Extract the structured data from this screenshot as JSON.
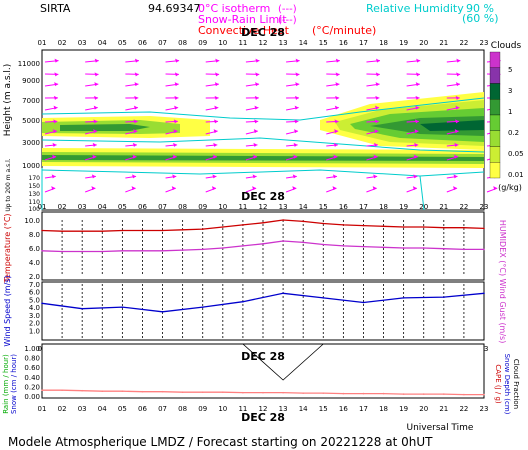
{
  "header": {
    "station": "SIRTA",
    "coords": "94.69347",
    "legend_isotherm": "0°C isotherm",
    "legend_isotherm_sym": "(---)",
    "legend_snow_rain": "Snow-Rain Limit",
    "legend_snow_rain_sym": "(---)",
    "legend_convective": "Convective Heat",
    "legend_convective_sym": "(°C/minute)",
    "legend_rh": "Relative Humidity",
    "legend_rh_90": "90 %",
    "legend_rh_60": "(60 %)"
  },
  "footer": {
    "title": "Modele Atmospherique LMDZ / Forecast starting on 20221228 at 0hUT",
    "universal_time": "Universal Time",
    "day_label": "DEC 28"
  },
  "colors": {
    "temperature": "#cc0000",
    "humidex": "#cc33cc",
    "wind": "#0000cc",
    "rain": "#ff8080",
    "rh": "#00cccc",
    "wind_arrow": "#ff00ff"
  },
  "chart_data": [
    {
      "type": "heatmap",
      "name": "cloud-cross-section",
      "day_label": "DEC 28",
      "x_hours": [
        "01",
        "02",
        "03",
        "04",
        "05",
        "06",
        "07",
        "08",
        "09",
        "10",
        "11",
        "12",
        "13",
        "14",
        "15",
        "16",
        "17",
        "18",
        "19",
        "20",
        "21",
        "22",
        "23"
      ],
      "ylabel": "Height (m a.s.l.)",
      "ylabel_low": "Up to 200 m a.s.l.",
      "y_ticks_upper": [
        "11000",
        "9000",
        "7000",
        "5000",
        "3000",
        "1000"
      ],
      "y_ticks_lower": [
        "170",
        "150",
        "130",
        "110",
        "100"
      ],
      "colorbar_title": "Clouds",
      "colorbar_unit": "(g/kg)",
      "colorbar_ticks": [
        "5",
        "3",
        "1",
        "0.2",
        "0.05",
        "0.01"
      ],
      "colorbar_colors": [
        "#cc33cc",
        "#8833aa",
        "#006633",
        "#339933",
        "#66cc33",
        "#99dd33",
        "#ccee33",
        "#ffff44"
      ]
    },
    {
      "type": "line",
      "name": "temperature-humidex",
      "ylabel": "Temperature (°C)",
      "ylabel_right": "HUMIDEX (°C)",
      "y_ticks": [
        "10.0",
        "8.0",
        "6.0",
        "4.0",
        "2.0"
      ],
      "ylim": [
        2,
        10
      ],
      "x": [
        1,
        2,
        3,
        4,
        5,
        6,
        7,
        8,
        9,
        10,
        11,
        12,
        13,
        14,
        15,
        16,
        17,
        18,
        19,
        20,
        21,
        22,
        23
      ],
      "series": [
        {
          "name": "Temperature",
          "values": [
            8.5,
            8.4,
            8.4,
            8.4,
            8.5,
            8.5,
            8.5,
            8.6,
            8.7,
            9.0,
            9.3,
            9.6,
            10.0,
            9.8,
            9.5,
            9.3,
            9.2,
            9.1,
            9.0,
            9.0,
            8.9,
            8.9,
            8.8
          ]
        },
        {
          "name": "HUMIDEX",
          "values": [
            5.6,
            5.5,
            5.5,
            5.5,
            5.6,
            5.6,
            5.6,
            5.7,
            5.8,
            6.0,
            6.3,
            6.6,
            7.0,
            6.8,
            6.5,
            6.3,
            6.2,
            6.1,
            6.0,
            6.0,
            5.9,
            5.8,
            5.8
          ]
        }
      ]
    },
    {
      "type": "line",
      "name": "wind-speed",
      "ylabel": "Wind Speed (m/s)",
      "ylabel_right": "Wind Gust (m/s)",
      "y_ticks": [
        "7.0",
        "6.0",
        "5.0",
        "4.0",
        "3.0",
        "2.0",
        "1.0"
      ],
      "ylim": [
        0,
        7
      ],
      "x": [
        1,
        3,
        5,
        7,
        9,
        11,
        13,
        15,
        17,
        19,
        21,
        23
      ],
      "series": [
        {
          "name": "Wind Speed",
          "values": [
            4.5,
            3.8,
            4.0,
            3.4,
            4.0,
            4.7,
            5.8,
            5.2,
            4.6,
            5.2,
            5.3,
            5.8
          ]
        }
      ]
    },
    {
      "type": "line",
      "name": "precipitation",
      "ylabel": "Rain (mm / hour)",
      "ylabel2": "Snow (cm / hour)",
      "ylabel_right": "CAPE (J / g)",
      "ylabel_right2": "Snow Depth (cm)",
      "ylabel_right3": "Cloud Fraction",
      "y_ticks": [
        "1.00",
        "0.80",
        "0.60",
        "0.40",
        "0.20",
        "0.00"
      ],
      "ylim": [
        0,
        1
      ],
      "x": [
        1,
        2,
        3,
        4,
        5,
        6,
        7,
        8,
        9,
        10,
        11,
        12,
        13,
        14,
        15,
        16,
        17,
        18,
        19,
        20,
        21,
        22,
        23
      ],
      "series": [
        {
          "name": "Rain",
          "values": [
            0.12,
            0.12,
            0.11,
            0.1,
            0.1,
            0.09,
            0.09,
            0.08,
            0.08,
            0.08,
            0.07,
            0.07,
            0.07,
            0.06,
            0.06,
            0.05,
            0.05,
            0.05,
            0.04,
            0.04,
            0.04,
            0.03,
            0.03
          ]
        }
      ]
    }
  ]
}
